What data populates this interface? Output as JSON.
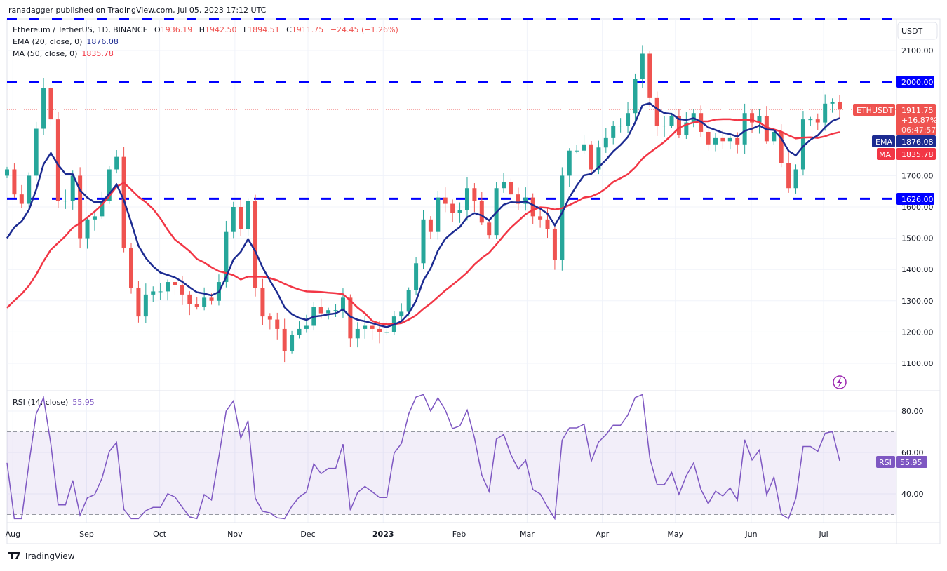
{
  "header": {
    "published": "ranadagger published on TradingView.com, Jul 05, 2023 17:12 UTC"
  },
  "legend": {
    "symbol": "Ethereum / TetherUS, 1D, BINANCE",
    "o_label": "O",
    "o": "1936.19",
    "h_label": "H",
    "h": "1942.50",
    "l_label": "L",
    "l": "1894.51",
    "c_label": "C",
    "c": "1911.75",
    "change": "−24.45 (−1.26%)",
    "ema_label": "EMA (20, close, 0)",
    "ema_value": "1876.08",
    "ma_label": "MA (50, close, 0)",
    "ma_value": "1835.78",
    "rsi_label": "RSI (14, close)",
    "rsi_value": "55.95"
  },
  "price_axis": {
    "currency": "USDT",
    "level_2000": "2000.00",
    "level_1626": "1626.00",
    "last_tag": "ETHUSDT",
    "last_price": "1911.75",
    "last_change": "+16.87%",
    "countdown": "06:47:57",
    "ema_tag": "EMA",
    "ema_price": "1876.08",
    "ma_tag": "MA",
    "ma_price": "1835.78",
    "rsi_tag": "RSI",
    "rsi_price": "55.95"
  },
  "footer": {
    "brand": "TradingView"
  },
  "colors": {
    "up": "#26a69a",
    "down": "#ef5350",
    "ema": "#1c2b91",
    "ma": "#f23645",
    "level": "#0000ff",
    "rsi": "#7e57c2"
  },
  "chart_data": {
    "type": "candlestick",
    "title": "Ethereum / TetherUS, 1D, BINANCE",
    "ylim": [
      1030,
      2210
    ],
    "yticks": [
      "2100.00",
      "1700.00",
      "1600.00",
      "1500.00",
      "1400.00",
      "1300.00",
      "1200.00",
      "1100.00"
    ],
    "ytick_values": [
      2100,
      1700,
      1600,
      1500,
      1400,
      1300,
      1200,
      1100
    ],
    "horizontal_levels": [
      2200,
      2000,
      1626
    ],
    "xticks": [
      "Aug",
      "Sep",
      "Oct",
      "Nov",
      "Dec",
      "2023",
      "Feb",
      "Mar",
      "Apr",
      "May",
      "Jun",
      "Jul"
    ],
    "xtick_index": [
      0.8,
      10.9,
      20.9,
      31.2,
      41.2,
      51.5,
      61.9,
      71.2,
      81.5,
      91.5,
      101.9,
      111.8
    ],
    "closes": [
      1720,
      1640,
      1610,
      1700,
      1850,
      1980,
      1880,
      1620,
      1620,
      1700,
      1500,
      1560,
      1570,
      1620,
      1720,
      1760,
      1470,
      1340,
      1250,
      1320,
      1330,
      1330,
      1360,
      1350,
      1320,
      1290,
      1280,
      1310,
      1300,
      1360,
      1520,
      1600,
      1530,
      1620,
      1340,
      1250,
      1240,
      1210,
      1140,
      1190,
      1210,
      1220,
      1280,
      1260,
      1270,
      1270,
      1310,
      1180,
      1210,
      1220,
      1210,
      1200,
      1200,
      1250,
      1265,
      1335,
      1420,
      1560,
      1520,
      1630,
      1610,
      1580,
      1590,
      1660,
      1620,
      1550,
      1510,
      1660,
      1680,
      1640,
      1610,
      1630,
      1570,
      1560,
      1530,
      1430,
      1700,
      1780,
      1780,
      1800,
      1720,
      1790,
      1820,
      1860,
      1860,
      1900,
      2010,
      2090,
      1950,
      1860,
      1860,
      1890,
      1830,
      1870,
      1900,
      1840,
      1800,
      1820,
      1810,
      1820,
      1800,
      1900,
      1870,
      1890,
      1810,
      1840,
      1740,
      1660,
      1720,
      1880,
      1880,
      1870,
      1930,
      1936.19,
      1911.75
    ],
    "first_open": 1700,
    "rsi": {
      "ylim": [
        25,
        90
      ],
      "yticks": [
        "80.00",
        "60.00",
        "40.00"
      ],
      "ytick_values": [
        80,
        60,
        40
      ],
      "band": [
        30,
        70
      ],
      "mid": 50
    }
  }
}
